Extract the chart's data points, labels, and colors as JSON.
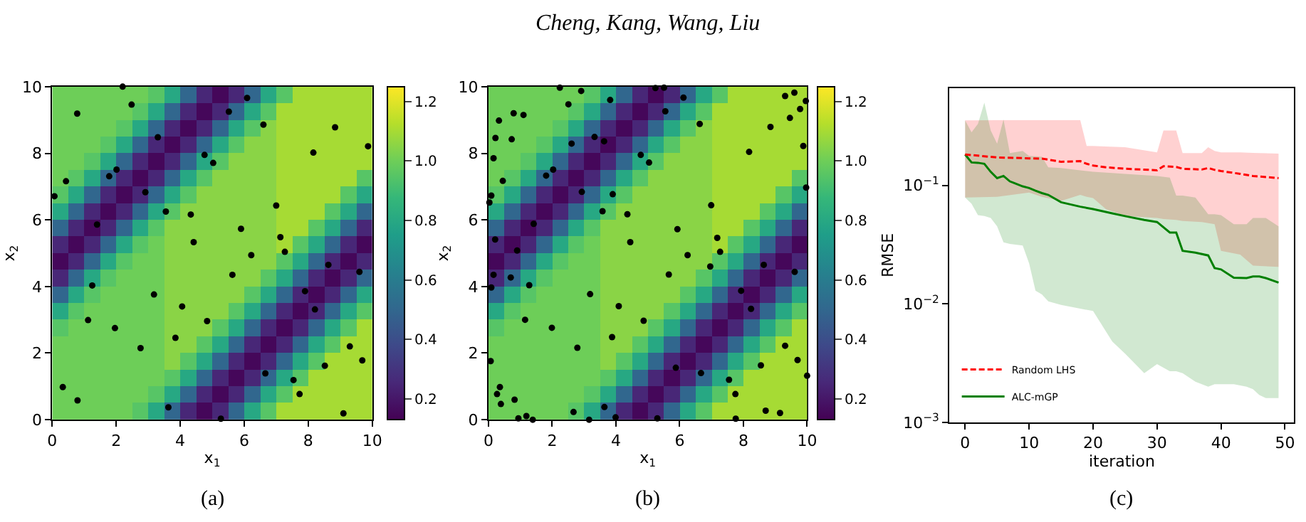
{
  "chart_data": [
    {
      "type": "heatmap",
      "xlabel": "x$_{1}$",
      "ylabel": "x$_{2}$",
      "annotations": [
        "(a)"
      ],
      "xlim": [
        0,
        10
      ],
      "ylim": [
        0,
        10
      ],
      "xticks": [
        0,
        2,
        4,
        6,
        8,
        10
      ],
      "yticks": [
        0,
        2,
        4,
        6,
        8,
        10
      ],
      "marker": "circle",
      "clim": [
        0.13,
        1.25
      ],
      "cticks": [
        0.2,
        0.4,
        0.6,
        0.8,
        {
          "value": 1.0,
          "label": "1.0"
        },
        1.2
      ],
      "cells": [
        [
          1.0,
          1.0,
          1.0,
          1.0,
          1.0,
          1.0,
          0.95,
          0.8,
          0.5,
          0.25,
          0.15,
          0.25,
          0.5,
          0.8,
          0.95,
          1.1,
          1.1,
          1.1,
          1.1,
          1.1
        ],
        [
          1.0,
          1.0,
          1.0,
          1.0,
          1.0,
          0.95,
          0.8,
          0.5,
          0.25,
          0.15,
          0.25,
          0.5,
          0.8,
          0.95,
          1.1,
          1.1,
          1.1,
          1.1,
          1.1,
          1.1
        ],
        [
          1.0,
          1.0,
          1.0,
          1.0,
          0.95,
          0.8,
          0.5,
          0.25,
          0.15,
          0.25,
          0.5,
          0.8,
          0.95,
          1.05,
          1.1,
          1.1,
          1.1,
          1.1,
          1.1,
          1.1
        ],
        [
          1.0,
          1.0,
          1.0,
          0.95,
          0.8,
          0.5,
          0.25,
          0.15,
          0.25,
          0.5,
          0.8,
          0.95,
          1.05,
          1.05,
          1.1,
          1.1,
          1.1,
          1.1,
          1.1,
          1.1
        ],
        [
          1.0,
          1.0,
          0.95,
          0.8,
          0.5,
          0.25,
          0.15,
          0.25,
          0.5,
          0.8,
          0.95,
          1.05,
          1.05,
          1.05,
          1.1,
          1.1,
          1.1,
          1.1,
          1.1,
          1.1
        ],
        [
          1.0,
          0.95,
          0.8,
          0.5,
          0.25,
          0.15,
          0.25,
          0.5,
          0.8,
          0.95,
          1.05,
          1.05,
          1.05,
          1.05,
          1.1,
          1.1,
          1.1,
          1.1,
          1.1,
          0.95
        ],
        [
          0.95,
          0.8,
          0.5,
          0.25,
          0.15,
          0.25,
          0.5,
          0.8,
          0.95,
          1.05,
          1.05,
          1.05,
          1.05,
          1.05,
          1.1,
          1.1,
          1.1,
          1.1,
          0.95,
          0.8
        ],
        [
          0.8,
          0.5,
          0.25,
          0.15,
          0.25,
          0.5,
          0.8,
          0.95,
          1.05,
          1.05,
          1.05,
          1.05,
          1.05,
          1.05,
          1.1,
          1.1,
          1.1,
          0.95,
          0.8,
          0.5
        ],
        [
          0.5,
          0.25,
          0.15,
          0.25,
          0.5,
          0.8,
          0.95,
          1.05,
          1.05,
          1.05,
          1.05,
          1.05,
          1.05,
          1.05,
          1.1,
          1.1,
          0.95,
          0.8,
          0.5,
          0.25
        ],
        [
          0.25,
          0.15,
          0.25,
          0.5,
          0.8,
          0.95,
          1.0,
          1.05,
          1.05,
          1.05,
          1.05,
          1.05,
          1.05,
          1.05,
          1.1,
          0.95,
          0.8,
          0.5,
          0.25,
          0.15
        ],
        [
          0.15,
          0.25,
          0.5,
          0.8,
          0.95,
          1.0,
          1.0,
          1.05,
          1.05,
          1.05,
          1.05,
          1.05,
          1.05,
          1.05,
          0.95,
          0.8,
          0.5,
          0.25,
          0.15,
          0.25
        ],
        [
          0.25,
          0.5,
          0.8,
          0.95,
          1.0,
          1.0,
          1.0,
          1.05,
          1.05,
          1.05,
          1.05,
          1.05,
          1.05,
          0.95,
          0.8,
          0.5,
          0.25,
          0.15,
          0.25,
          0.5
        ],
        [
          0.5,
          0.8,
          0.95,
          1.0,
          1.0,
          1.0,
          1.0,
          1.05,
          1.05,
          1.05,
          1.05,
          1.05,
          0.95,
          0.8,
          0.5,
          0.25,
          0.15,
          0.25,
          0.5,
          0.8
        ],
        [
          0.8,
          0.95,
          1.0,
          1.0,
          1.0,
          1.0,
          1.0,
          1.05,
          1.05,
          1.05,
          1.05,
          0.95,
          0.8,
          0.5,
          0.25,
          0.15,
          0.25,
          0.5,
          0.8,
          0.95
        ],
        [
          0.95,
          1.0,
          1.0,
          1.0,
          1.0,
          1.0,
          1.0,
          1.05,
          1.05,
          1.05,
          0.95,
          0.8,
          0.5,
          0.25,
          0.15,
          0.25,
          0.5,
          0.8,
          0.95,
          1.1
        ],
        [
          1.0,
          1.0,
          1.0,
          1.0,
          1.0,
          1.0,
          1.0,
          1.05,
          1.05,
          0.95,
          0.8,
          0.5,
          0.25,
          0.15,
          0.25,
          0.5,
          0.8,
          0.95,
          1.1,
          1.1
        ],
        [
          1.0,
          1.0,
          1.0,
          1.0,
          1.0,
          1.0,
          1.0,
          1.05,
          0.95,
          0.8,
          0.5,
          0.25,
          0.15,
          0.25,
          0.5,
          0.8,
          0.95,
          1.1,
          1.1,
          1.1
        ],
        [
          1.0,
          1.0,
          1.0,
          1.0,
          1.0,
          1.0,
          1.0,
          0.95,
          0.8,
          0.5,
          0.25,
          0.15,
          0.25,
          0.5,
          0.8,
          0.95,
          1.1,
          1.1,
          1.1,
          1.1
        ],
        [
          1.0,
          1.0,
          1.0,
          1.0,
          1.0,
          1.0,
          0.95,
          0.8,
          0.5,
          0.25,
          0.15,
          0.25,
          0.5,
          0.8,
          0.95,
          1.1,
          1.1,
          1.1,
          1.1,
          1.1
        ],
        [
          1.0,
          1.0,
          1.0,
          1.0,
          1.0,
          0.95,
          0.8,
          0.5,
          0.25,
          0.15,
          0.25,
          0.5,
          0.8,
          0.95,
          1.1,
          1.1,
          1.1,
          1.1,
          1.1,
          1.1
        ]
      ],
      "series": [
        {
          "type": "scatter",
          "color": "#000000",
          "x": [
            2.2,
            2.48,
            0.78,
            6.09,
            5.52,
            6.6,
            8.84,
            9.87,
            3.3,
            4.76,
            5.03,
            8.16,
            0.43,
            1.78,
            2.01,
            0.07,
            2.91,
            3.55,
            4.33,
            7.0,
            1.4,
            5.9,
            7.13,
            4.42,
            7.27,
            6.22,
            8.63,
            9.6,
            5.63,
            1.25,
            7.9,
            3.18,
            4.06,
            8.21,
            1.12,
            4.84,
            1.96,
            3.85,
            2.76,
            9.3,
            9.69,
            8.52,
            6.66,
            7.54,
            0.33,
            0.79,
            7.73,
            3.63,
            5.27,
            9.1
          ],
          "values": [
            10.0,
            9.46,
            9.19,
            9.66,
            9.25,
            8.86,
            8.78,
            8.21,
            8.48,
            7.95,
            7.71,
            8.02,
            7.16,
            7.31,
            7.51,
            6.71,
            6.83,
            6.25,
            6.16,
            6.43,
            5.86,
            5.73,
            5.48,
            5.33,
            5.04,
            4.94,
            4.65,
            4.44,
            4.35,
            4.03,
            3.86,
            3.76,
            3.4,
            3.31,
            2.99,
            2.96,
            2.75,
            2.46,
            2.15,
            2.2,
            1.78,
            1.62,
            1.39,
            1.19,
            0.98,
            0.58,
            0.77,
            0.37,
            0.03,
            0.19
          ]
        }
      ]
    },
    {
      "type": "heatmap",
      "xlabel": "x$_{1}$",
      "ylabel": "x$_{2}$",
      "annotations": [
        "(b)"
      ],
      "xlim": [
        0,
        10
      ],
      "ylim": [
        0,
        10
      ],
      "xticks": [
        0,
        2,
        4,
        6,
        8,
        10
      ],
      "yticks": [
        0,
        2,
        4,
        6,
        8,
        10
      ],
      "marker": "circle",
      "clim": [
        0.13,
        1.25
      ],
      "cticks": [
        0.2,
        0.4,
        0.6,
        0.8,
        {
          "value": 1.0,
          "label": "1.0"
        },
        1.2
      ],
      "title": "Cheng, Kang, Wang, Liu",
      "cells": [
        [
          1.0,
          1.0,
          1.0,
          1.0,
          1.0,
          1.0,
          0.95,
          0.8,
          0.5,
          0.25,
          0.15,
          0.25,
          0.5,
          0.8,
          0.95,
          1.1,
          1.1,
          1.1,
          1.1,
          1.1
        ],
        [
          1.0,
          1.0,
          1.0,
          1.0,
          1.0,
          0.95,
          0.8,
          0.5,
          0.25,
          0.15,
          0.25,
          0.5,
          0.8,
          0.95,
          1.1,
          1.1,
          1.1,
          1.1,
          1.1,
          1.1
        ],
        [
          1.0,
          1.0,
          1.0,
          1.0,
          0.95,
          0.8,
          0.5,
          0.25,
          0.15,
          0.25,
          0.5,
          0.8,
          0.95,
          1.05,
          1.1,
          1.1,
          1.1,
          1.1,
          1.1,
          1.1
        ],
        [
          1.0,
          1.0,
          1.0,
          0.95,
          0.8,
          0.5,
          0.25,
          0.15,
          0.25,
          0.5,
          0.8,
          0.95,
          1.05,
          1.05,
          1.1,
          1.1,
          1.1,
          1.1,
          1.1,
          1.1
        ],
        [
          1.0,
          1.0,
          0.95,
          0.8,
          0.5,
          0.25,
          0.15,
          0.25,
          0.5,
          0.8,
          0.95,
          1.05,
          1.05,
          1.05,
          1.1,
          1.1,
          1.1,
          1.1,
          1.1,
          1.1
        ],
        [
          1.0,
          0.95,
          0.8,
          0.5,
          0.25,
          0.15,
          0.25,
          0.5,
          0.8,
          0.95,
          1.05,
          1.05,
          1.05,
          1.05,
          1.1,
          1.1,
          1.1,
          1.1,
          1.1,
          0.95
        ],
        [
          0.95,
          0.8,
          0.5,
          0.25,
          0.15,
          0.25,
          0.5,
          0.8,
          0.95,
          1.05,
          1.05,
          1.05,
          1.05,
          1.05,
          1.1,
          1.1,
          1.1,
          1.1,
          0.95,
          0.8
        ],
        [
          0.8,
          0.5,
          0.25,
          0.15,
          0.25,
          0.5,
          0.8,
          0.95,
          1.05,
          1.05,
          1.05,
          1.05,
          1.05,
          1.05,
          1.1,
          1.1,
          1.1,
          0.95,
          0.8,
          0.5
        ],
        [
          0.5,
          0.25,
          0.15,
          0.25,
          0.5,
          0.8,
          0.95,
          1.05,
          1.05,
          1.05,
          1.05,
          1.05,
          1.05,
          1.05,
          1.1,
          1.1,
          0.95,
          0.8,
          0.5,
          0.25
        ],
        [
          0.25,
          0.15,
          0.25,
          0.5,
          0.8,
          0.95,
          1.0,
          1.05,
          1.05,
          1.05,
          1.05,
          1.05,
          1.05,
          1.05,
          1.1,
          0.95,
          0.8,
          0.5,
          0.25,
          0.15
        ],
        [
          0.15,
          0.25,
          0.5,
          0.8,
          0.95,
          1.0,
          1.0,
          1.05,
          1.05,
          1.05,
          1.05,
          1.05,
          1.05,
          1.05,
          0.95,
          0.8,
          0.5,
          0.25,
          0.15,
          0.25
        ],
        [
          0.25,
          0.5,
          0.8,
          0.95,
          1.0,
          1.0,
          1.0,
          1.05,
          1.05,
          1.05,
          1.05,
          1.05,
          1.05,
          0.95,
          0.8,
          0.5,
          0.25,
          0.15,
          0.25,
          0.5
        ],
        [
          0.5,
          0.8,
          0.95,
          1.0,
          1.0,
          1.0,
          1.0,
          1.05,
          1.05,
          1.05,
          1.05,
          1.05,
          0.95,
          0.8,
          0.5,
          0.25,
          0.15,
          0.25,
          0.5,
          0.8
        ],
        [
          0.8,
          0.95,
          1.0,
          1.0,
          1.0,
          1.0,
          1.0,
          1.05,
          1.05,
          1.05,
          1.05,
          0.95,
          0.8,
          0.5,
          0.25,
          0.15,
          0.25,
          0.5,
          0.8,
          0.95
        ],
        [
          0.95,
          1.0,
          1.0,
          1.0,
          1.0,
          1.0,
          1.0,
          1.05,
          1.05,
          1.05,
          0.95,
          0.8,
          0.5,
          0.25,
          0.15,
          0.25,
          0.5,
          0.8,
          0.95,
          1.1
        ],
        [
          1.0,
          1.0,
          1.0,
          1.0,
          1.0,
          1.0,
          1.0,
          1.05,
          1.05,
          0.95,
          0.8,
          0.5,
          0.25,
          0.15,
          0.25,
          0.5,
          0.8,
          0.95,
          1.1,
          1.1
        ],
        [
          1.0,
          1.0,
          1.0,
          1.0,
          1.0,
          1.0,
          1.0,
          1.05,
          0.95,
          0.8,
          0.5,
          0.25,
          0.15,
          0.25,
          0.5,
          0.8,
          0.95,
          1.1,
          1.1,
          1.1
        ],
        [
          1.0,
          1.0,
          1.0,
          1.0,
          1.0,
          1.0,
          1.0,
          0.95,
          0.8,
          0.5,
          0.25,
          0.15,
          0.25,
          0.5,
          0.8,
          0.95,
          1.1,
          1.1,
          1.1,
          1.1
        ],
        [
          1.0,
          1.0,
          1.0,
          1.0,
          1.0,
          1.0,
          0.95,
          0.8,
          0.5,
          0.25,
          0.15,
          0.25,
          0.5,
          0.8,
          0.95,
          1.1,
          1.1,
          1.1,
          1.1,
          1.1
        ],
        [
          1.0,
          1.0,
          1.0,
          1.0,
          1.0,
          0.95,
          0.8,
          0.5,
          0.25,
          0.15,
          0.25,
          0.5,
          0.8,
          0.95,
          1.1,
          1.1,
          1.1,
          1.1,
          1.1,
          1.1
        ]
      ],
      "series": [
        {
          "type": "scatter",
          "color": "#000000",
          "x": [
            2.24,
            2.91,
            5.24,
            5.51,
            6.12,
            2.51,
            3.82,
            5.55,
            9.31,
            9.6,
            9.96,
            9.78,
            9.46,
            0.33,
            0.79,
            1.1,
            0.22,
            0.73,
            0.16,
            2.61,
            3.33,
            3.63,
            6.63,
            8.85,
            9.88,
            8.18,
            4.78,
            5.04,
            1.81,
            2.03,
            0.45,
            0.09,
            0.03,
            2.93,
            3.9,
            9.97,
            3.58,
            4.36,
            6.99,
            1.42,
            0.21,
            5.93,
            7.18,
            4.45,
            0.9,
            7.27,
            6.25,
            8.64,
            6.96,
            9.61,
            0.16,
            0.7,
            5.66,
            0.09,
            1.28,
            7.93,
            3.19,
            4.09,
            8.24,
            1.15,
            4.87,
            1.99,
            3.88,
            2.79,
            9.31,
            0.07,
            9.7,
            8.55,
            5.88,
            6.67,
            10.0,
            7.55,
            0.36,
            0.27,
            0.82,
            0.39,
            7.75,
            3.64,
            2.67,
            8.7,
            9.15,
            0.94,
            1.19,
            1.39,
            3.16,
            3.99,
            5.3,
            7.76
          ],
          "values": [
            9.97,
            9.87,
            9.96,
            9.97,
            9.67,
            9.47,
            9.6,
            9.26,
            9.72,
            9.82,
            9.57,
            9.33,
            9.06,
            8.98,
            9.2,
            9.15,
            8.46,
            8.42,
            7.85,
            8.29,
            8.49,
            8.36,
            8.88,
            8.79,
            8.22,
            8.04,
            7.95,
            7.72,
            7.33,
            7.51,
            7.17,
            6.73,
            6.52,
            6.84,
            6.77,
            6.97,
            6.26,
            6.17,
            6.44,
            5.88,
            5.41,
            5.72,
            5.46,
            5.33,
            5.08,
            5.04,
            4.94,
            4.65,
            4.6,
            4.44,
            4.35,
            4.27,
            4.36,
            3.97,
            4.04,
            3.87,
            3.77,
            3.41,
            3.33,
            3.0,
            2.97,
            2.76,
            2.48,
            2.16,
            2.22,
            1.76,
            1.79,
            1.63,
            1.56,
            1.4,
            1.32,
            1.2,
            0.98,
            0.77,
            0.6,
            0.47,
            0.77,
            0.38,
            0.23,
            0.27,
            0.2,
            0.04,
            0.11,
            0.0,
            0.0,
            0.07,
            0.04,
            0.03
          ]
        }
      ]
    },
    {
      "type": "line",
      "xlabel": "iteration",
      "ylabel": "RMSE",
      "annotations": [
        "(c)"
      ],
      "log": "y",
      "legend": "bottom left",
      "xlim": [
        -2.45,
        51.45
      ],
      "xticks": [
        0,
        10,
        20,
        30,
        40,
        50
      ],
      "ylim": [
        0.001,
        0.66
      ],
      "yticks": [
        {
          "value": 0.001,
          "label": "10$^{−3}$"
        },
        {
          "value": 0.01,
          "label": "10$^{−2}$"
        },
        {
          "value": 0.1,
          "label": "10$^{−1}$"
        }
      ],
      "series": [
        {
          "name": "Random LHS",
          "color": "#ff0000",
          "line_style": "dashed",
          "x": [
            0,
            5,
            10,
            12,
            15,
            18,
            19,
            20,
            22,
            25,
            30,
            31,
            33,
            34,
            37,
            38,
            39,
            40,
            43,
            45,
            49
          ],
          "values": [
            0.182,
            0.172,
            0.169,
            0.168,
            0.158,
            0.16,
            0.152,
            0.147,
            0.142,
            0.138,
            0.134,
            0.145,
            0.143,
            0.138,
            0.136,
            0.14,
            0.135,
            0.132,
            0.125,
            0.12,
            0.115
          ],
          "lower": [
            0.079,
            0.08,
            0.087,
            0.08,
            0.074,
            0.083,
            0.08,
            0.078,
            0.063,
            0.055,
            0.053,
            0.052,
            0.051,
            0.05,
            0.049,
            0.048,
            0.047,
            0.028,
            0.026,
            0.021,
            0.0205
          ],
          "upper": [
            0.354,
            0.355,
            0.355,
            0.355,
            0.355,
            0.355,
            0.215,
            0.215,
            0.213,
            0.21,
            0.19,
            0.29,
            0.29,
            0.187,
            0.187,
            0.21,
            0.195,
            0.19,
            0.19,
            0.188,
            0.185
          ]
        },
        {
          "name": "ALC-mGP",
          "color": "#008000",
          "line_style": "solid",
          "x": [
            0,
            1,
            2,
            3,
            4,
            5,
            6,
            7,
            9,
            10,
            11,
            12,
            13,
            15,
            18,
            20,
            23,
            25,
            28,
            30,
            32,
            33,
            34,
            36,
            38,
            39,
            40,
            42,
            44,
            45,
            46,
            47,
            49
          ],
          "values": [
            0.182,
            0.156,
            0.155,
            0.152,
            0.13,
            0.115,
            0.12,
            0.108,
            0.098,
            0.095,
            0.09,
            0.086,
            0.083,
            0.072,
            0.066,
            0.063,
            0.058,
            0.055,
            0.051,
            0.049,
            0.04,
            0.04,
            0.028,
            0.027,
            0.0256,
            0.02,
            0.0195,
            0.0166,
            0.0165,
            0.017,
            0.017,
            0.0165,
            0.0151
          ],
          "lower": [
            0.079,
            0.07,
            0.056,
            0.055,
            0.053,
            0.045,
            0.033,
            0.032,
            0.031,
            0.022,
            0.0129,
            0.012,
            0.0105,
            0.0098,
            0.0091,
            0.0087,
            0.0048,
            0.0038,
            0.0026,
            0.0031,
            0.0027,
            0.0027,
            0.0026,
            0.0022,
            0.002,
            0.0021,
            0.0021,
            0.0021,
            0.002,
            0.0019,
            0.0017,
            0.0016,
            0.0016
          ],
          "upper": [
            0.354,
            0.28,
            0.33,
            0.5,
            0.29,
            0.225,
            0.36,
            0.187,
            0.195,
            0.177,
            0.176,
            0.174,
            0.142,
            0.14,
            0.134,
            0.13,
            0.127,
            0.125,
            0.122,
            0.12,
            0.116,
            0.082,
            0.082,
            0.079,
            0.057,
            0.057,
            0.056,
            0.047,
            0.047,
            0.053,
            0.053,
            0.053,
            0.045
          ]
        }
      ]
    }
  ]
}
